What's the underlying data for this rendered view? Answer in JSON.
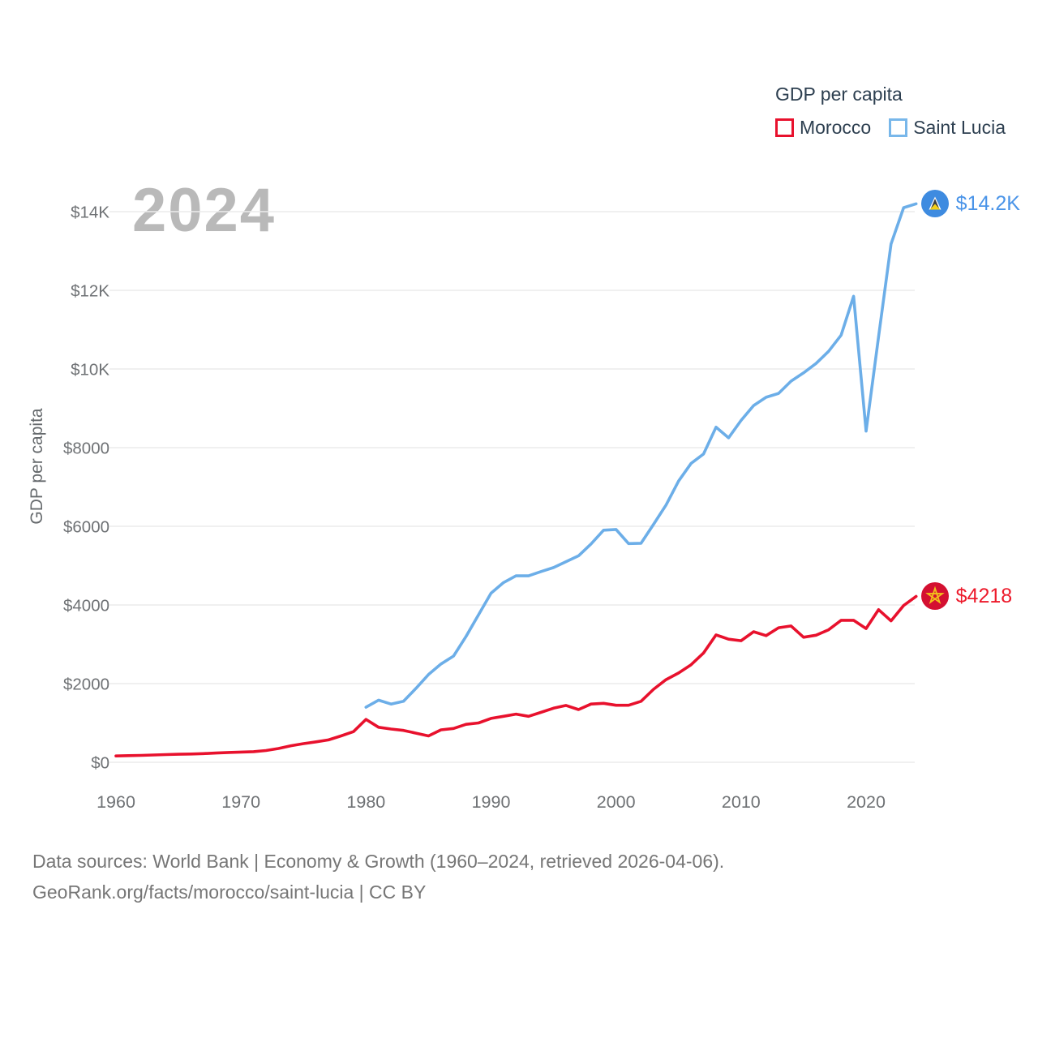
{
  "watermark": "2024",
  "legend": {
    "title": "GDP per capita",
    "items": [
      {
        "label": "Morocco",
        "color": "#e8112d"
      },
      {
        "label": "Saint Lucia",
        "color": "#78b7ea"
      }
    ]
  },
  "y_axis_title": "GDP per capita",
  "end_labels": [
    {
      "series": "Saint Lucia",
      "text": "$14.2K",
      "color": "#4a94e8",
      "flag": "saint-lucia-flag"
    },
    {
      "series": "Morocco",
      "text": "$4218",
      "color": "#ed1a2b",
      "flag": "morocco-flag"
    }
  ],
  "footer": {
    "line1": "Data sources: World Bank | Economy & Growth (1960–2024, retrieved 2026-04-06).",
    "line2": "GeoRank.org/facts/morocco/saint-lucia | CC BY"
  },
  "chart_data": {
    "type": "line",
    "title": "GDP per capita",
    "xlabel": "",
    "ylabel": "GDP per capita",
    "x_range": [
      1960,
      2024
    ],
    "ylim": [
      0,
      14500
    ],
    "grid": true,
    "legend_position": "top-right",
    "x_ticks": [
      1960,
      1970,
      1980,
      1990,
      2000,
      2010,
      2020
    ],
    "y_ticks": [
      {
        "value": 0,
        "label": "$0"
      },
      {
        "value": 2000,
        "label": "$2000"
      },
      {
        "value": 4000,
        "label": "$4000"
      },
      {
        "value": 6000,
        "label": "$6000"
      },
      {
        "value": 8000,
        "label": "$8000"
      },
      {
        "value": 10000,
        "label": "$10K"
      },
      {
        "value": 12000,
        "label": "$12K"
      },
      {
        "value": 14000,
        "label": "$14K"
      }
    ],
    "series": [
      {
        "name": "Morocco",
        "color": "#e8112d",
        "start_year": 1960,
        "end_value_label": "$4218",
        "values": [
          160,
          170,
          175,
          185,
          195,
          205,
          210,
          220,
          235,
          250,
          260,
          270,
          300,
          350,
          420,
          475,
          520,
          570,
          670,
          780,
          1090,
          890,
          845,
          810,
          740,
          670,
          825,
          860,
          965,
          1000,
          1115,
          1170,
          1225,
          1170,
          1270,
          1375,
          1445,
          1340,
          1480,
          1500,
          1450,
          1450,
          1550,
          1855,
          2100,
          2270,
          2480,
          2780,
          3240,
          3130,
          3090,
          3320,
          3220,
          3420,
          3465,
          3180,
          3230,
          3370,
          3610,
          3610,
          3400,
          3880,
          3595,
          3985,
          4218
        ]
      },
      {
        "name": "Saint Lucia",
        "color": "#6caee8",
        "start_year": 1980,
        "end_value_label": "$14.2K",
        "values": [
          1400,
          1580,
          1480,
          1550,
          1880,
          2230,
          2500,
          2700,
          3200,
          3750,
          4300,
          4570,
          4740,
          4740,
          4850,
          4950,
          5100,
          5250,
          5550,
          5900,
          5920,
          5560,
          5570,
          6050,
          6540,
          7150,
          7600,
          7840,
          8520,
          8250,
          8690,
          9070,
          9280,
          9380,
          9690,
          9900,
          10140,
          10450,
          10860,
          11850,
          8420,
          10820,
          13180,
          14100,
          14200
        ]
      }
    ]
  }
}
